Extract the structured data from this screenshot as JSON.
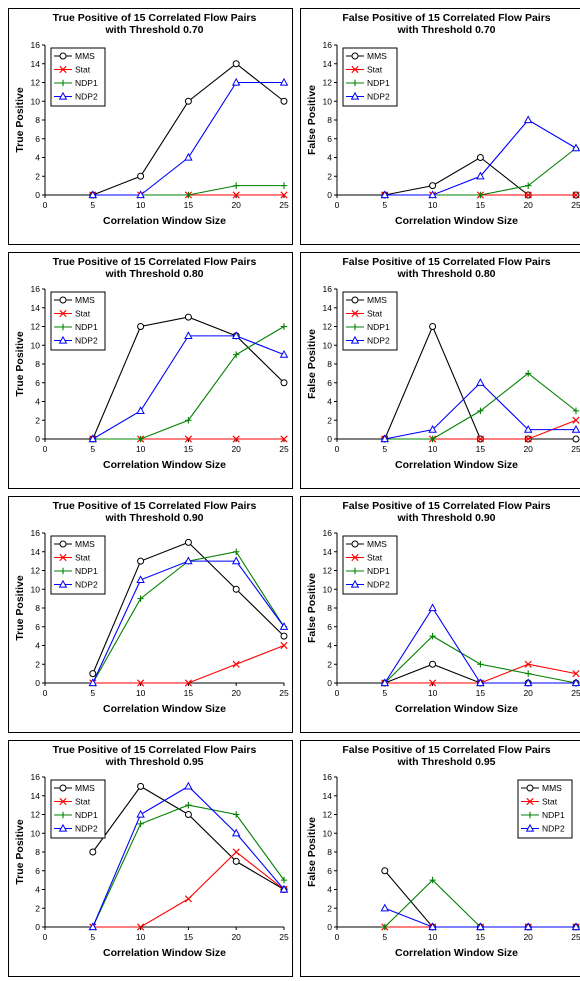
{
  "series_style": {
    "MMS": {
      "color": "#000000",
      "marker": "circle"
    },
    "Stat": {
      "color": "#ff0000",
      "marker": "x"
    },
    "NDP1": {
      "color": "#008000",
      "marker": "plus"
    },
    "NDP2": {
      "color": "#0000ff",
      "marker": "triangle"
    }
  },
  "chart_data": [
    {
      "type": "line",
      "title": [
        "True Positive of 15 Correlated  Flow Pairs",
        "with Threshold 0.70"
      ],
      "xlabel": "Correlation Window Size",
      "ylabel": "True Positive",
      "xticks": [
        0,
        5,
        10,
        15,
        20,
        25
      ],
      "yticks": [
        0,
        2,
        4,
        6,
        8,
        10,
        12,
        14,
        16
      ],
      "xlim": [
        0,
        25
      ],
      "ylim": [
        0,
        16
      ],
      "legend": "top-left",
      "x": [
        5,
        10,
        15,
        20,
        25
      ],
      "series": [
        {
          "name": "MMS",
          "values": [
            0,
            2,
            10,
            14,
            10
          ]
        },
        {
          "name": "Stat",
          "values": [
            0,
            0,
            0,
            0,
            0
          ]
        },
        {
          "name": "NDP1",
          "values": [
            0,
            0,
            0,
            1,
            1
          ]
        },
        {
          "name": "NDP2",
          "values": [
            0,
            0,
            4,
            12,
            12
          ]
        }
      ]
    },
    {
      "type": "line",
      "title": [
        "False Positive of 15 Correlated  Flow Pairs",
        "with Threshold 0.70"
      ],
      "xlabel": "Correlation Window Size",
      "ylabel": "False Positive",
      "xticks": [
        0,
        5,
        10,
        15,
        20,
        25
      ],
      "yticks": [
        0,
        2,
        4,
        6,
        8,
        10,
        12,
        14,
        16
      ],
      "xlim": [
        0,
        25
      ],
      "ylim": [
        0,
        16
      ],
      "legend": "top-left",
      "x": [
        5,
        10,
        15,
        20,
        25
      ],
      "series": [
        {
          "name": "MMS",
          "values": [
            0,
            1,
            4,
            0,
            0
          ]
        },
        {
          "name": "Stat",
          "values": [
            0,
            0,
            0,
            0,
            0
          ]
        },
        {
          "name": "NDP1",
          "values": [
            0,
            0,
            0,
            1,
            5
          ]
        },
        {
          "name": "NDP2",
          "values": [
            0,
            0,
            2,
            8,
            5
          ]
        }
      ]
    },
    {
      "type": "line",
      "title": [
        "True Positive of 15 Correlated  Flow Pairs",
        "with Threshold  0.80"
      ],
      "xlabel": "Correlation Window Size",
      "ylabel": "True Positive",
      "xticks": [
        0,
        5,
        10,
        15,
        20,
        25
      ],
      "yticks": [
        0,
        2,
        4,
        6,
        8,
        10,
        12,
        14,
        16
      ],
      "xlim": [
        0,
        25
      ],
      "ylim": [
        0,
        16
      ],
      "legend": "top-left",
      "x": [
        5,
        10,
        15,
        20,
        25
      ],
      "series": [
        {
          "name": "MMS",
          "values": [
            0,
            12,
            13,
            11,
            6
          ]
        },
        {
          "name": "Stat",
          "values": [
            0,
            0,
            0,
            0,
            0
          ]
        },
        {
          "name": "NDP1",
          "values": [
            0,
            0,
            2,
            9,
            12
          ]
        },
        {
          "name": "NDP2",
          "values": [
            0,
            3,
            11,
            11,
            9
          ]
        }
      ]
    },
    {
      "type": "line",
      "title": [
        "False Positive of 15 Correlated  Flow Pairs",
        "with Threshold 0.80"
      ],
      "xlabel": "Correlation Window Size",
      "ylabel": "False Positive",
      "xticks": [
        0,
        5,
        10,
        15,
        20,
        25
      ],
      "yticks": [
        0,
        2,
        4,
        6,
        8,
        10,
        12,
        14,
        16
      ],
      "xlim": [
        0,
        25
      ],
      "ylim": [
        0,
        16
      ],
      "legend": "top-left",
      "x": [
        5,
        10,
        15,
        20,
        25
      ],
      "series": [
        {
          "name": "MMS",
          "values": [
            0,
            12,
            0,
            0,
            0
          ]
        },
        {
          "name": "Stat",
          "values": [
            0,
            0,
            0,
            0,
            2
          ]
        },
        {
          "name": "NDP1",
          "values": [
            0,
            0,
            3,
            7,
            3
          ]
        },
        {
          "name": "NDP2",
          "values": [
            0,
            1,
            6,
            1,
            1
          ]
        }
      ]
    },
    {
      "type": "line",
      "title": [
        "True Positive of 15 Correlated  Flow Pairs",
        "with Threshold 0.90"
      ],
      "xlabel": "Correlation Window Size",
      "ylabel": "True Positive",
      "xticks": [
        0,
        5,
        10,
        15,
        20,
        25
      ],
      "yticks": [
        0,
        2,
        4,
        6,
        8,
        10,
        12,
        14,
        16
      ],
      "xlim": [
        0,
        25
      ],
      "ylim": [
        0,
        16
      ],
      "legend": "top-left",
      "x": [
        5,
        10,
        15,
        20,
        25
      ],
      "series": [
        {
          "name": "MMS",
          "values": [
            1,
            13,
            15,
            10,
            5
          ]
        },
        {
          "name": "Stat",
          "values": [
            0,
            0,
            0,
            2,
            4
          ]
        },
        {
          "name": "NDP1",
          "values": [
            0,
            9,
            13,
            14,
            6
          ]
        },
        {
          "name": "NDP2",
          "values": [
            0,
            11,
            13,
            13,
            6
          ]
        }
      ]
    },
    {
      "type": "line",
      "title": [
        "False Positive of 15 Correlated  Flow Pairs",
        "with Threshold 0.90"
      ],
      "xlabel": "Correlation Window Size",
      "ylabel": "False Positive",
      "xticks": [
        0,
        5,
        10,
        15,
        20,
        25
      ],
      "yticks": [
        0,
        2,
        4,
        6,
        8,
        10,
        12,
        14,
        16
      ],
      "xlim": [
        0,
        25
      ],
      "ylim": [
        0,
        16
      ],
      "legend": "top-left",
      "x": [
        5,
        10,
        15,
        20,
        25
      ],
      "series": [
        {
          "name": "MMS",
          "values": [
            0,
            2,
            0,
            0,
            0
          ]
        },
        {
          "name": "Stat",
          "values": [
            0,
            0,
            0,
            2,
            1
          ]
        },
        {
          "name": "NDP1",
          "values": [
            0,
            5,
            2,
            1,
            0
          ]
        },
        {
          "name": "NDP2",
          "values": [
            0,
            8,
            0,
            0,
            0
          ]
        }
      ]
    },
    {
      "type": "line",
      "title": [
        "True Positive of 15 Correlated  Flow Pairs",
        "with Threshold 0.95"
      ],
      "xlabel": "Correlation Window Size",
      "ylabel": "True Positive",
      "xticks": [
        0,
        5,
        10,
        15,
        20,
        25
      ],
      "yticks": [
        0,
        2,
        4,
        6,
        8,
        10,
        12,
        14,
        16
      ],
      "xlim": [
        0,
        25
      ],
      "ylim": [
        0,
        16
      ],
      "legend": "top-left",
      "x": [
        5,
        10,
        15,
        20,
        25
      ],
      "series": [
        {
          "name": "MMS",
          "values": [
            8,
            15,
            12,
            7,
            4
          ]
        },
        {
          "name": "Stat",
          "values": [
            0,
            0,
            3,
            8,
            4
          ]
        },
        {
          "name": "NDP1",
          "values": [
            0,
            11,
            13,
            12,
            5
          ]
        },
        {
          "name": "NDP2",
          "values": [
            0,
            12,
            15,
            10,
            4
          ]
        }
      ]
    },
    {
      "type": "line",
      "title": [
        "False Positive of 15 Correlated  Flow Pairs",
        "with Threshold 0.95"
      ],
      "xlabel": "Correlation Window Size",
      "ylabel": "False Positive",
      "xticks": [
        0,
        5,
        10,
        15,
        20,
        25
      ],
      "yticks": [
        0,
        2,
        4,
        6,
        8,
        10,
        12,
        14,
        16
      ],
      "xlim": [
        0,
        25
      ],
      "ylim": [
        0,
        16
      ],
      "legend": "top-right",
      "x": [
        5,
        10,
        15,
        20,
        25
      ],
      "series": [
        {
          "name": "MMS",
          "values": [
            6,
            0,
            0,
            0,
            0
          ]
        },
        {
          "name": "Stat",
          "values": [
            0,
            0,
            0,
            0,
            0
          ]
        },
        {
          "name": "NDP1",
          "values": [
            0,
            5,
            0,
            0,
            0
          ]
        },
        {
          "name": "NDP2",
          "values": [
            2,
            0,
            0,
            0,
            0
          ]
        }
      ]
    }
  ]
}
